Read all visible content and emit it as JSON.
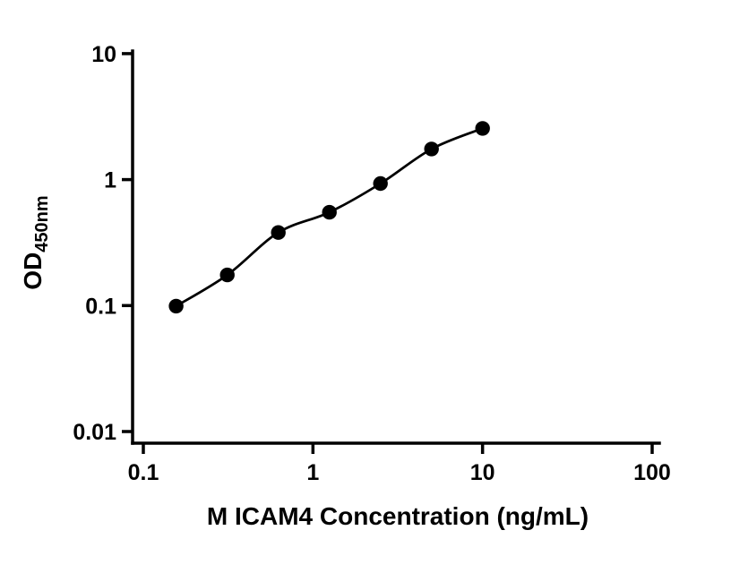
{
  "figure": {
    "kind": "elisa-standard-curve",
    "background": "#ffffff"
  },
  "chart_data": {
    "type": "scatter",
    "title": "",
    "xlabel": "M ICAM4 Concentration (ng/mL)",
    "ylabel": "OD",
    "ylabel_subscript": "450nm",
    "xscale": "log",
    "yscale": "log",
    "xlim": [
      0.1,
      100
    ],
    "ylim": [
      0.01,
      10
    ],
    "xticks": [
      0.1,
      1,
      10,
      100
    ],
    "xtick_labels": [
      "0.1",
      "1",
      "10",
      "100"
    ],
    "yticks": [
      0.01,
      0.1,
      1,
      10
    ],
    "ytick_labels": [
      "0.01",
      "0.1",
      "1",
      "10"
    ],
    "grid": false,
    "legend": null,
    "curve_style": "smooth-fit",
    "marker": "filled-circle",
    "marker_color": "#000000",
    "line_color": "#000000",
    "series": [
      {
        "name": "standard-curve",
        "x": [
          0.156,
          0.3125,
          0.625,
          1.25,
          2.5,
          5,
          10
        ],
        "y": [
          0.099,
          0.175,
          0.38,
          0.55,
          0.93,
          1.75,
          2.55
        ]
      }
    ]
  }
}
